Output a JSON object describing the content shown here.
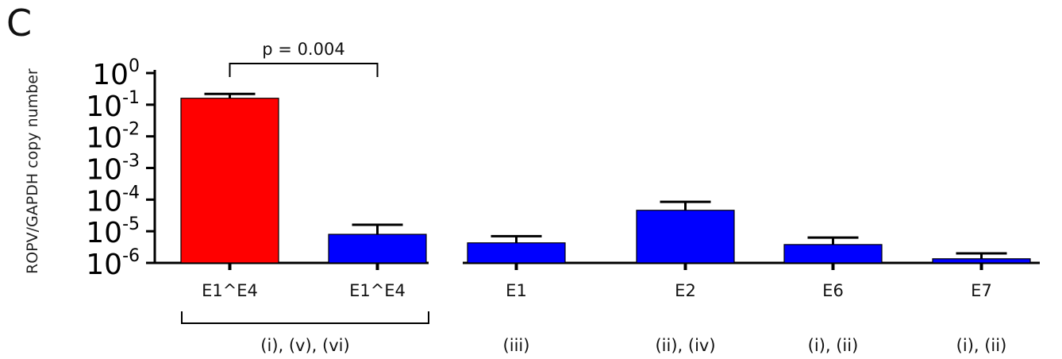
{
  "panel_label": "C",
  "chart_data": {
    "type": "bar",
    "scale": "log",
    "ylabel": "ROPV/GAPDH copy number",
    "ylim": [
      1e-06,
      1
    ],
    "yticks": [
      {
        "value": 1,
        "base": "10",
        "exp": "0"
      },
      {
        "value": 0.1,
        "base": "10",
        "exp": "-1"
      },
      {
        "value": 0.01,
        "base": "10",
        "exp": "-2"
      },
      {
        "value": 0.001,
        "base": "10",
        "exp": "-3"
      },
      {
        "value": 0.0001,
        "base": "10",
        "exp": "-4"
      },
      {
        "value": 1e-05,
        "base": "10",
        "exp": "-5"
      },
      {
        "value": 1e-06,
        "base": "10",
        "exp": "-6"
      }
    ],
    "categories": [
      "E1^E4",
      "E1^E4",
      "E1",
      "E2",
      "E6",
      "E7"
    ],
    "values": [
      0.16,
      8e-06,
      4.3e-06,
      4.6e-05,
      3.8e-06,
      1.35e-06
    ],
    "error_upper": [
      0.22,
      1.6e-05,
      7e-06,
      8.5e-05,
      6.3e-06,
      2e-06
    ],
    "colors": [
      "#ff0000",
      "#0000ff",
      "#0000ff",
      "#0000ff",
      "#0000ff",
      "#0000ff"
    ],
    "groups": [
      {
        "label": "(i), (v), (vi)",
        "bars": [
          0,
          1
        ]
      },
      {
        "label": "(iii)",
        "bars": [
          2
        ]
      },
      {
        "label": "(ii), (iv)",
        "bars": [
          3
        ]
      },
      {
        "label": "(i), (ii)",
        "bars": [
          4
        ]
      },
      {
        "label": "(i), (ii)",
        "bars": [
          5
        ]
      }
    ],
    "annotations": [
      {
        "text": "p = 0.004",
        "between": [
          0,
          1
        ]
      }
    ]
  }
}
